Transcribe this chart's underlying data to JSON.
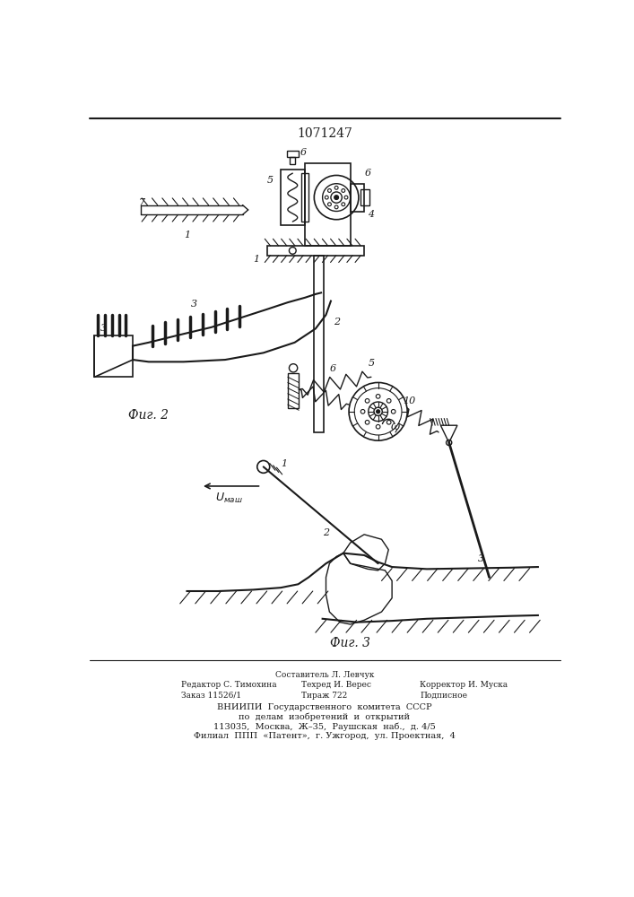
{
  "title": "1071247",
  "bg_color": "#ffffff",
  "line_color": "#1a1a1a",
  "fig2_label": "Фиг. 2",
  "fig3_label": "Фиг. 3"
}
